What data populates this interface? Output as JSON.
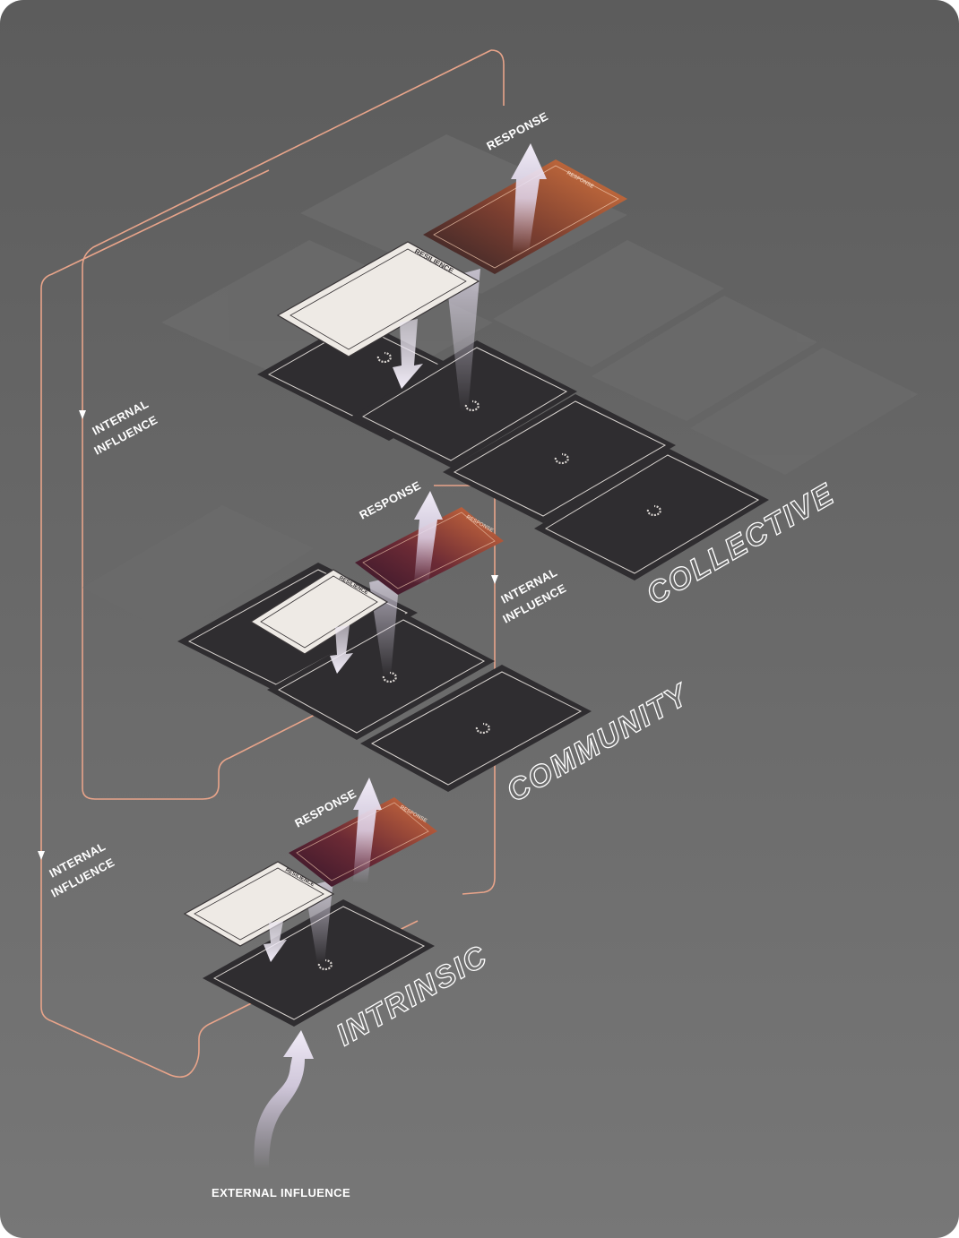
{
  "diagram": {
    "levels": {
      "collective": "COLLECTIVE",
      "community": "COMMUNITY",
      "intrinsic": "INTRINSIC"
    },
    "labels": {
      "response": "RESPONSE",
      "internal": "INTERNAL",
      "influence": "INFLUENCE",
      "external_influence": "EXTERNAL INFLUENCE"
    },
    "cards": {
      "resilience": "RESILIENCE",
      "response": "RESPONSE"
    },
    "colors": {
      "background_top": "#5c5c5c",
      "background_bottom": "#767676",
      "tile_dark": "#2f2d30",
      "tile_ghost": "#6a6a6a",
      "connector": "#e8a48a",
      "card_light": "#eeeae5",
      "card_orange": "#c96a3f",
      "card_plum": "#3a1f2c"
    }
  }
}
